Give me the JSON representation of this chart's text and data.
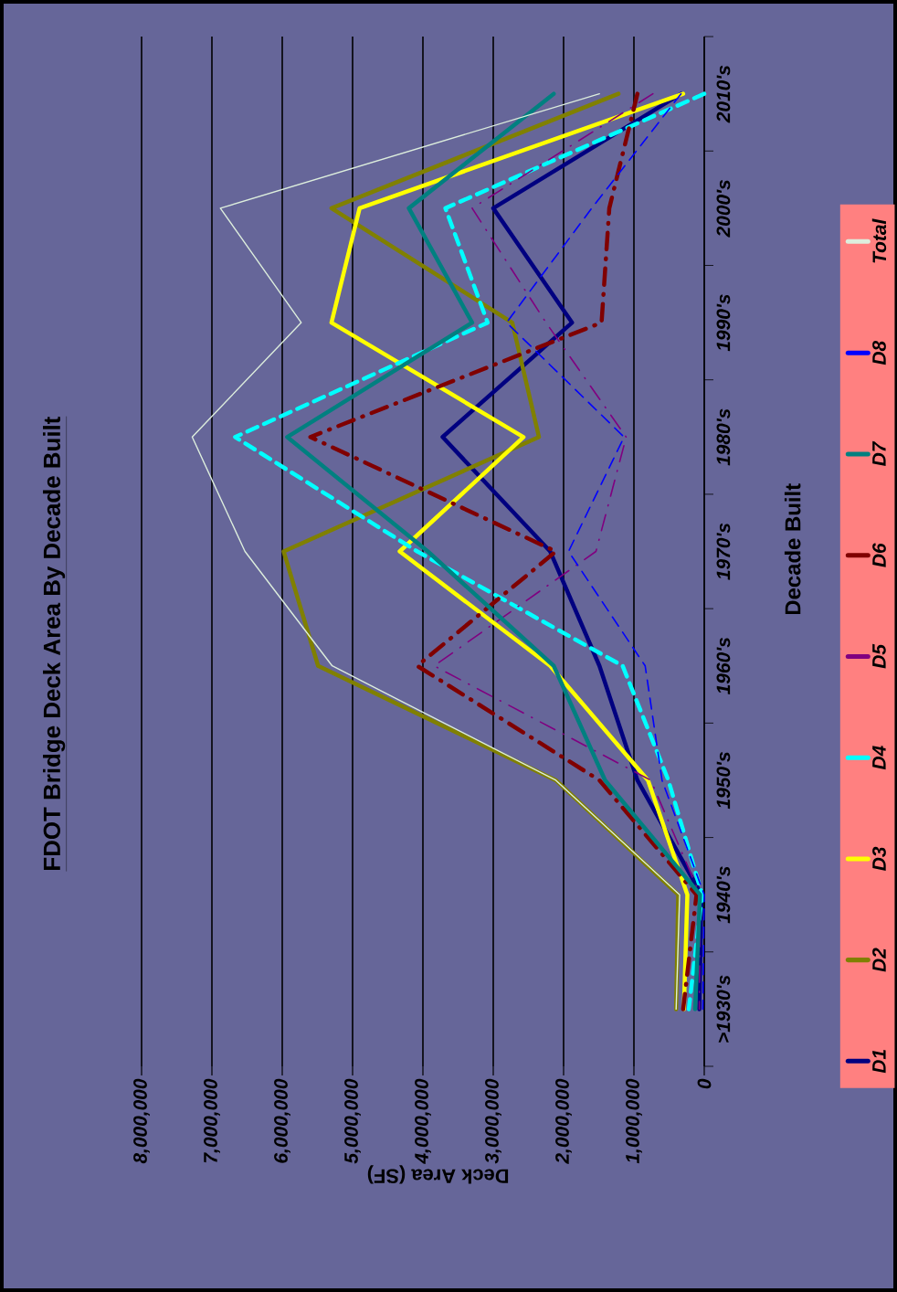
{
  "chart_data": {
    "type": "line",
    "orientation": "horizontal",
    "title": "FDOT Bridge Deck Area By Decade Built",
    "xlabel": "Deck Area (SF)",
    "ylabel": "Decade Built",
    "categories": [
      "2010's",
      "2000's",
      "1990's",
      "1980's",
      "1970's",
      "1960's",
      "1950's",
      "1940's",
      ">1930's"
    ],
    "xlim": [
      8000000,
      0
    ],
    "xticks": [
      {
        "value": 8000000,
        "label": "8,000,000"
      },
      {
        "value": 7000000,
        "label": "7,000,000"
      },
      {
        "value": 6000000,
        "label": "6,000,000"
      },
      {
        "value": 5000000,
        "label": "5,000,000"
      },
      {
        "value": 4000000,
        "label": "4,000,000"
      },
      {
        "value": 3000000,
        "label": "3,000,000"
      },
      {
        "value": 2000000,
        "label": "2,000,000"
      },
      {
        "value": 1000000,
        "label": "1,000,000"
      },
      {
        "value": 0,
        "label": "0"
      }
    ],
    "grid": "x",
    "legend": "right",
    "series": [
      {
        "name": "D1",
        "color": "#000080",
        "line_style": "solid",
        "values": [
          330000,
          3000000,
          1880000,
          3720000,
          2190000,
          1490000,
          950000,
          40000,
          70000
        ]
      },
      {
        "name": "D2",
        "color": "#808000",
        "line_style": "solid",
        "values": [
          1220000,
          5300000,
          2730000,
          2350000,
          5980000,
          5490000,
          2110000,
          370000,
          400000
        ]
      },
      {
        "name": "D3",
        "color": "#ffff00",
        "line_style": "solid",
        "values": [
          300000,
          4900000,
          5300000,
          2570000,
          4330000,
          2190000,
          800000,
          240000,
          290000
        ]
      },
      {
        "name": "D4",
        "color": "#00ffff",
        "line_style": "dashed",
        "values": [
          0,
          3680000,
          3080000,
          6670000,
          4080000,
          1160000,
          510000,
          30000,
          220000
        ]
      },
      {
        "name": "D5",
        "color": "#800080",
        "line_style": "dashdot",
        "values": [
          730000,
          3300000,
          2250000,
          1110000,
          1540000,
          3840000,
          760000,
          60000,
          70000
        ]
      },
      {
        "name": "D6",
        "color": "#800000",
        "line_style": "dashdot",
        "values": [
          950000,
          1350000,
          1460000,
          5600000,
          2110000,
          4080000,
          1490000,
          110000,
          300000
        ]
      },
      {
        "name": "D7",
        "color": "#008080",
        "line_style": "solid",
        "values": [
          2140000,
          4200000,
          3300000,
          5930000,
          3930000,
          2140000,
          1410000,
          60000,
          130000
        ]
      },
      {
        "name": "D8",
        "color": "#0000ff",
        "line_style": "dashed",
        "values": [
          330000,
          1600000,
          2810000,
          1140000,
          1930000,
          840000,
          600000,
          0,
          20000
        ]
      },
      {
        "name": "Total",
        "color": "#ddeedd",
        "line_style": "solid",
        "values": [
          1490000,
          6880000,
          5730000,
          7280000,
          6530000,
          5290000,
          2110000,
          350000,
          400000
        ]
      }
    ]
  }
}
